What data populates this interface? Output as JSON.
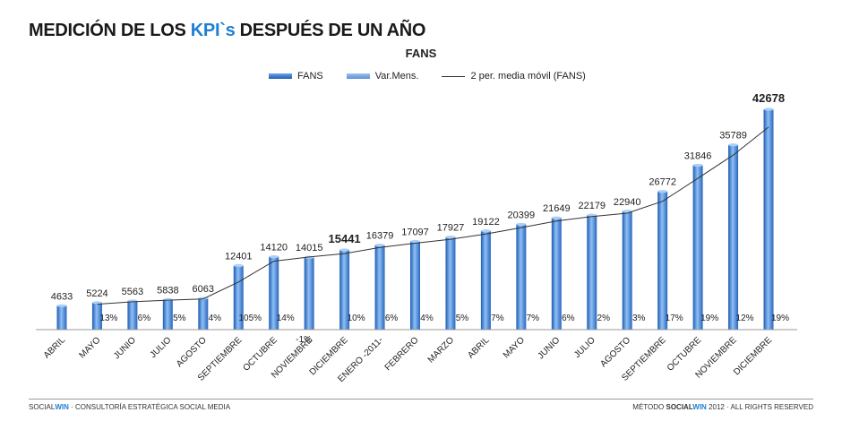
{
  "header": {
    "title_pre": "MEDICIÓN DE LOS ",
    "title_highlight": "KPI`s",
    "title_post": " DESPUÉS DE UN AÑO"
  },
  "chart_data": {
    "type": "bar",
    "title": "FANS",
    "legend": [
      "FANS",
      "Var.Mens.",
      "2 per. media móvil (FANS)"
    ],
    "legend_position": "top",
    "categories": [
      "ABRIL",
      "MAYO",
      "JUNIO",
      "JULIO",
      "AGOSTO",
      "SEPTIEMBRE",
      "OCTUBRE",
      "NOVIEMBRE",
      "DICIEMBRE",
      "ENERO -2011-",
      "FEBRERO",
      "MARZO",
      "ABRIL",
      "MAYO",
      "JUNIO",
      "JULIO",
      "AGOSTO",
      "SEPTIEMBRE",
      "OCTUBRE",
      "NOVIEMBRE",
      "DICIEMBRE"
    ],
    "series": [
      {
        "name": "FANS",
        "values": [
          4633,
          5224,
          5563,
          5838,
          6063,
          12401,
          14120,
          14015,
          15441,
          16379,
          17097,
          17927,
          19122,
          20399,
          21649,
          22179,
          22940,
          26772,
          31846,
          35789,
          42678
        ]
      },
      {
        "name": "Var.Mens.",
        "labels": [
          "",
          "13%",
          "6%",
          "5%",
          "4%",
          "105%",
          "14%",
          "-1%",
          "10%",
          "6%",
          "4%",
          "5%",
          "7%",
          "7%",
          "6%",
          "2%",
          "3%",
          "17%",
          "19%",
          "12%",
          "19%"
        ]
      },
      {
        "name": "2 per. media móvil (FANS)",
        "type": "line"
      }
    ],
    "bold_labels": [
      8,
      20
    ],
    "ylim": [
      0,
      45000
    ],
    "grid": false,
    "colors": {
      "bar_light": "#7fb3f0",
      "bar_dark": "#1e5cb3",
      "line": "#333333"
    }
  },
  "footer": {
    "left_a": "SOCIAL",
    "left_b": "WIN",
    "left_c": " · CONSULTORÍA ESTRATÉGICA SOCIAL MEDIA",
    "right_a": "MÉTODO ",
    "right_b": "SOCIAL",
    "right_c": "WIN",
    "right_d": " 2012 · ALL RIGHTS RESERVED"
  }
}
